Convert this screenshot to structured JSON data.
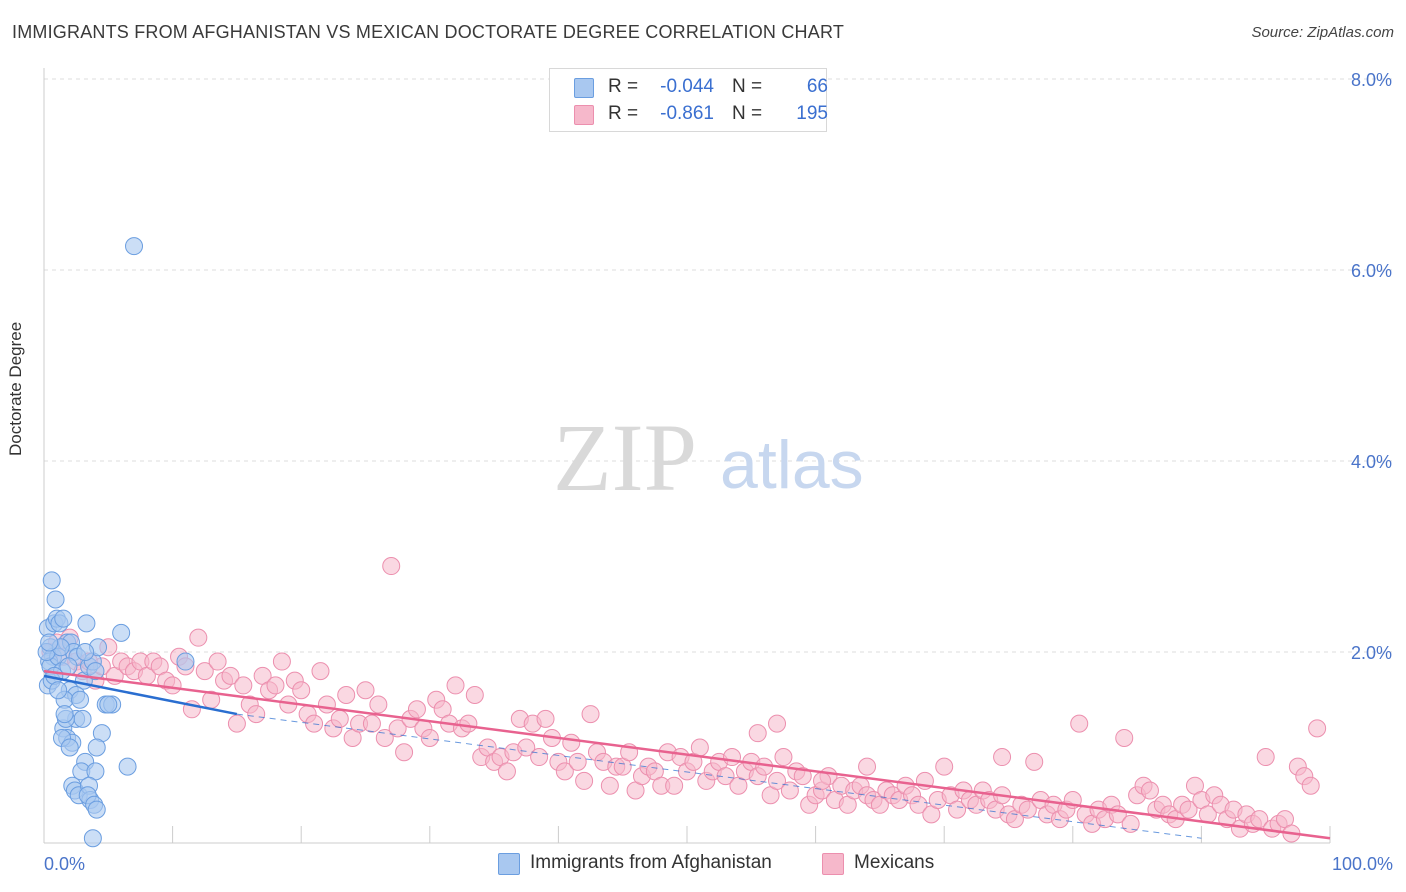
{
  "title": "IMMIGRANTS FROM AFGHANISTAN VS MEXICAN DOCTORATE DEGREE CORRELATION CHART",
  "source": "Source: ZipAtlas.com",
  "watermark": {
    "zip": "ZIP",
    "atlas": "atlas"
  },
  "colors": {
    "blue_fill": "#a9c8f0",
    "blue_stroke": "#6b9ee0",
    "blue_line": "#2a6ed0",
    "pink_fill": "#f6b8cb",
    "pink_stroke": "#ec8fae",
    "pink_line": "#e8628f",
    "grid": "#dddddd",
    "tick_text": "#4a74c9"
  },
  "legend": {
    "series": [
      {
        "r_label": "R =",
        "r_value": "-0.044",
        "n_label": "N =",
        "n_value": "66"
      },
      {
        "r_label": "R =",
        "r_value": "-0.861",
        "n_label": "N =",
        "n_value": "195"
      }
    ]
  },
  "bottom_legend": [
    "Immigrants from Afghanistan",
    "Mexicans"
  ],
  "chart_data": {
    "type": "scatter",
    "title": "IMMIGRANTS FROM AFGHANISTAN VS MEXICAN DOCTORATE DEGREE CORRELATION CHART",
    "xlabel": "",
    "ylabel": "Doctorate Degree",
    "xlim": [
      0,
      100
    ],
    "ylim": [
      0,
      8.0
    ],
    "x_tick_labels": [
      "0.0%",
      "100.0%"
    ],
    "y_ticks": [
      2.0,
      4.0,
      6.0,
      8.0
    ],
    "y_tick_labels": [
      "2.0%",
      "4.0%",
      "6.0%",
      "8.0%"
    ],
    "grid": true,
    "series": [
      {
        "name": "Immigrants from Afghanistan",
        "R": -0.044,
        "N": 66,
        "trend": {
          "x0": 0,
          "y0": 1.75,
          "x1": 15,
          "y1": 1.35,
          "dash_to_x": 90,
          "dash_to_y": 0.05
        },
        "points": [
          [
            0.3,
            2.25
          ],
          [
            0.5,
            2.05
          ],
          [
            0.7,
            1.95
          ],
          [
            0.4,
            1.9
          ],
          [
            0.8,
            2.3
          ],
          [
            1.0,
            2.35
          ],
          [
            0.6,
            2.75
          ],
          [
            0.9,
            2.55
          ],
          [
            1.2,
            2.3
          ],
          [
            1.5,
            2.35
          ],
          [
            1.8,
            2.1
          ],
          [
            2.1,
            2.1
          ],
          [
            0.5,
            1.85
          ],
          [
            1.1,
            1.95
          ],
          [
            1.4,
            1.8
          ],
          [
            0.3,
            1.65
          ],
          [
            2.3,
            2.0
          ],
          [
            2.6,
            1.95
          ],
          [
            3.1,
            1.7
          ],
          [
            3.5,
            1.85
          ],
          [
            3.8,
            1.9
          ],
          [
            3.3,
            2.3
          ],
          [
            4.2,
            2.05
          ],
          [
            4.0,
            1.8
          ],
          [
            2.0,
            1.6
          ],
          [
            2.5,
            1.55
          ],
          [
            1.6,
            1.5
          ],
          [
            2.8,
            1.5
          ],
          [
            4.5,
            1.15
          ],
          [
            4.8,
            1.45
          ],
          [
            5.3,
            1.45
          ],
          [
            5.0,
            1.45
          ],
          [
            1.5,
            1.2
          ],
          [
            1.8,
            1.1
          ],
          [
            2.2,
            1.05
          ],
          [
            2.5,
            1.3
          ],
          [
            3.0,
            1.3
          ],
          [
            1.7,
            1.3
          ],
          [
            1.4,
            1.1
          ],
          [
            4.1,
            1.0
          ],
          [
            2.2,
            0.6
          ],
          [
            2.4,
            0.55
          ],
          [
            2.7,
            0.5
          ],
          [
            3.2,
            0.85
          ],
          [
            2.9,
            0.75
          ],
          [
            4.0,
            0.75
          ],
          [
            3.5,
            0.6
          ],
          [
            3.6,
            0.45
          ],
          [
            3.4,
            0.5
          ],
          [
            3.9,
            0.4
          ],
          [
            4.1,
            0.35
          ],
          [
            3.8,
            0.05
          ],
          [
            6.5,
            0.8
          ],
          [
            6.0,
            2.2
          ],
          [
            11.0,
            1.9
          ],
          [
            7.0,
            6.25
          ],
          [
            0.2,
            2.0
          ],
          [
            0.6,
            1.7
          ],
          [
            1.9,
            1.85
          ],
          [
            0.8,
            1.75
          ],
          [
            1.3,
            2.05
          ],
          [
            1.1,
            1.6
          ],
          [
            3.2,
            2.0
          ],
          [
            2.0,
            1.0
          ],
          [
            0.4,
            2.1
          ],
          [
            1.6,
            1.35
          ]
        ]
      },
      {
        "name": "Mexicans",
        "R": -0.861,
        "N": 195,
        "trend": {
          "x0": 0,
          "y0": 1.8,
          "x1": 100,
          "y1": 0.05
        },
        "points": [
          [
            0.5,
            2.0
          ],
          [
            1.0,
            2.1
          ],
          [
            1.5,
            1.95
          ],
          [
            2.0,
            2.15
          ],
          [
            2.5,
            1.9
          ],
          [
            3.0,
            1.8
          ],
          [
            3.5,
            1.9
          ],
          [
            4.0,
            1.7
          ],
          [
            4.5,
            1.85
          ],
          [
            5.0,
            2.05
          ],
          [
            5.5,
            1.75
          ],
          [
            6.0,
            1.9
          ],
          [
            6.5,
            1.85
          ],
          [
            7.0,
            1.8
          ],
          [
            7.5,
            1.9
          ],
          [
            8.0,
            1.75
          ],
          [
            8.5,
            1.9
          ],
          [
            9.0,
            1.85
          ],
          [
            9.5,
            1.7
          ],
          [
            10.0,
            1.65
          ],
          [
            10.5,
            1.95
          ],
          [
            11.0,
            1.85
          ],
          [
            11.5,
            1.4
          ],
          [
            12.0,
            2.15
          ],
          [
            12.5,
            1.8
          ],
          [
            13.0,
            1.5
          ],
          [
            13.5,
            1.9
          ],
          [
            14.0,
            1.7
          ],
          [
            14.5,
            1.75
          ],
          [
            15.0,
            1.25
          ],
          [
            15.5,
            1.65
          ],
          [
            16.0,
            1.45
          ],
          [
            16.5,
            1.35
          ],
          [
            17.0,
            1.75
          ],
          [
            17.5,
            1.6
          ],
          [
            18.0,
            1.65
          ],
          [
            18.5,
            1.9
          ],
          [
            19.0,
            1.45
          ],
          [
            19.5,
            1.7
          ],
          [
            20.0,
            1.6
          ],
          [
            20.5,
            1.35
          ],
          [
            21.0,
            1.25
          ],
          [
            21.5,
            1.8
          ],
          [
            22.0,
            1.45
          ],
          [
            22.5,
            1.2
          ],
          [
            23.0,
            1.3
          ],
          [
            23.5,
            1.55
          ],
          [
            24.0,
            1.1
          ],
          [
            24.5,
            1.25
          ],
          [
            25.0,
            1.6
          ],
          [
            25.5,
            1.25
          ],
          [
            26.0,
            1.45
          ],
          [
            26.5,
            1.1
          ],
          [
            27.0,
            2.9
          ],
          [
            27.5,
            1.2
          ],
          [
            28.0,
            0.95
          ],
          [
            28.5,
            1.3
          ],
          [
            29.0,
            1.4
          ],
          [
            29.5,
            1.2
          ],
          [
            30.0,
            1.1
          ],
          [
            30.5,
            1.5
          ],
          [
            31.0,
            1.4
          ],
          [
            31.5,
            1.25
          ],
          [
            32.0,
            1.65
          ],
          [
            32.5,
            1.2
          ],
          [
            33.0,
            1.25
          ],
          [
            33.5,
            1.55
          ],
          [
            34.0,
            0.9
          ],
          [
            34.5,
            1.0
          ],
          [
            35.0,
            0.85
          ],
          [
            35.5,
            0.9
          ],
          [
            36.0,
            0.75
          ],
          [
            36.5,
            0.95
          ],
          [
            37.0,
            1.3
          ],
          [
            37.5,
            1.0
          ],
          [
            38.0,
            1.25
          ],
          [
            38.5,
            0.9
          ],
          [
            39.0,
            1.3
          ],
          [
            39.5,
            1.1
          ],
          [
            40.0,
            0.85
          ],
          [
            40.5,
            0.75
          ],
          [
            41.0,
            1.05
          ],
          [
            41.5,
            0.85
          ],
          [
            42.0,
            0.65
          ],
          [
            42.5,
            1.35
          ],
          [
            43.0,
            0.95
          ],
          [
            43.5,
            0.85
          ],
          [
            44.0,
            0.6
          ],
          [
            44.5,
            0.8
          ],
          [
            45.0,
            0.8
          ],
          [
            45.5,
            0.95
          ],
          [
            46.0,
            0.55
          ],
          [
            46.5,
            0.7
          ],
          [
            47.0,
            0.8
          ],
          [
            47.5,
            0.75
          ],
          [
            48.0,
            0.6
          ],
          [
            48.5,
            0.95
          ],
          [
            49.0,
            0.6
          ],
          [
            49.5,
            0.9
          ],
          [
            50.0,
            0.75
          ],
          [
            50.5,
            0.85
          ],
          [
            51.0,
            1.0
          ],
          [
            51.5,
            0.65
          ],
          [
            52.0,
            0.75
          ],
          [
            52.5,
            0.85
          ],
          [
            53.0,
            0.7
          ],
          [
            53.5,
            0.9
          ],
          [
            54.0,
            0.6
          ],
          [
            54.5,
            0.75
          ],
          [
            55.0,
            0.85
          ],
          [
            55.5,
            0.7
          ],
          [
            56.0,
            0.8
          ],
          [
            56.5,
            0.5
          ],
          [
            57.0,
            0.65
          ],
          [
            57.5,
            0.9
          ],
          [
            58.0,
            0.55
          ],
          [
            58.5,
            0.75
          ],
          [
            59.0,
            0.7
          ],
          [
            59.5,
            0.4
          ],
          [
            60.0,
            0.5
          ],
          [
            60.5,
            0.55
          ],
          [
            61.0,
            0.7
          ],
          [
            61.5,
            0.45
          ],
          [
            62.0,
            0.6
          ],
          [
            62.5,
            0.4
          ],
          [
            63.0,
            0.55
          ],
          [
            63.5,
            0.6
          ],
          [
            64.0,
            0.5
          ],
          [
            64.5,
            0.45
          ],
          [
            65.0,
            0.4
          ],
          [
            65.5,
            0.55
          ],
          [
            66.0,
            0.5
          ],
          [
            66.5,
            0.45
          ],
          [
            67.0,
            0.6
          ],
          [
            67.5,
            0.5
          ],
          [
            68.0,
            0.4
          ],
          [
            68.5,
            0.65
          ],
          [
            69.0,
            0.3
          ],
          [
            69.5,
            0.45
          ],
          [
            70.0,
            0.8
          ],
          [
            70.5,
            0.5
          ],
          [
            71.0,
            0.35
          ],
          [
            71.5,
            0.55
          ],
          [
            72.0,
            0.45
          ],
          [
            72.5,
            0.4
          ],
          [
            73.0,
            0.55
          ],
          [
            73.5,
            0.45
          ],
          [
            74.0,
            0.35
          ],
          [
            74.5,
            0.5
          ],
          [
            75.0,
            0.3
          ],
          [
            75.5,
            0.25
          ],
          [
            76.0,
            0.4
          ],
          [
            76.5,
            0.35
          ],
          [
            77.0,
            0.85
          ],
          [
            77.5,
            0.45
          ],
          [
            78.0,
            0.3
          ],
          [
            78.5,
            0.4
          ],
          [
            79.0,
            0.25
          ],
          [
            79.5,
            0.35
          ],
          [
            80.0,
            0.45
          ],
          [
            80.5,
            1.25
          ],
          [
            81.0,
            0.3
          ],
          [
            81.5,
            0.2
          ],
          [
            82.0,
            0.35
          ],
          [
            82.5,
            0.25
          ],
          [
            83.0,
            0.4
          ],
          [
            83.5,
            0.3
          ],
          [
            84.0,
            1.1
          ],
          [
            84.5,
            0.2
          ],
          [
            85.0,
            0.5
          ],
          [
            85.5,
            0.6
          ],
          [
            86.0,
            0.55
          ],
          [
            86.5,
            0.35
          ],
          [
            87.0,
            0.4
          ],
          [
            87.5,
            0.3
          ],
          [
            88.0,
            0.25
          ],
          [
            88.5,
            0.4
          ],
          [
            89.0,
            0.35
          ],
          [
            89.5,
            0.6
          ],
          [
            90.0,
            0.45
          ],
          [
            90.5,
            0.3
          ],
          [
            91.0,
            0.5
          ],
          [
            91.5,
            0.4
          ],
          [
            92.0,
            0.25
          ],
          [
            92.5,
            0.35
          ],
          [
            93.0,
            0.15
          ],
          [
            93.5,
            0.3
          ],
          [
            94.0,
            0.2
          ],
          [
            94.5,
            0.25
          ],
          [
            95.0,
            0.9
          ],
          [
            95.5,
            0.15
          ],
          [
            96.0,
            0.2
          ],
          [
            96.5,
            0.25
          ],
          [
            97.0,
            0.1
          ],
          [
            97.5,
            0.8
          ],
          [
            98.0,
            0.7
          ],
          [
            98.5,
            0.6
          ],
          [
            99.0,
            1.2
          ],
          [
            60.5,
            0.65
          ],
          [
            74.5,
            0.9
          ],
          [
            64.0,
            0.8
          ],
          [
            57.0,
            1.25
          ],
          [
            55.5,
            1.15
          ]
        ]
      }
    ]
  }
}
